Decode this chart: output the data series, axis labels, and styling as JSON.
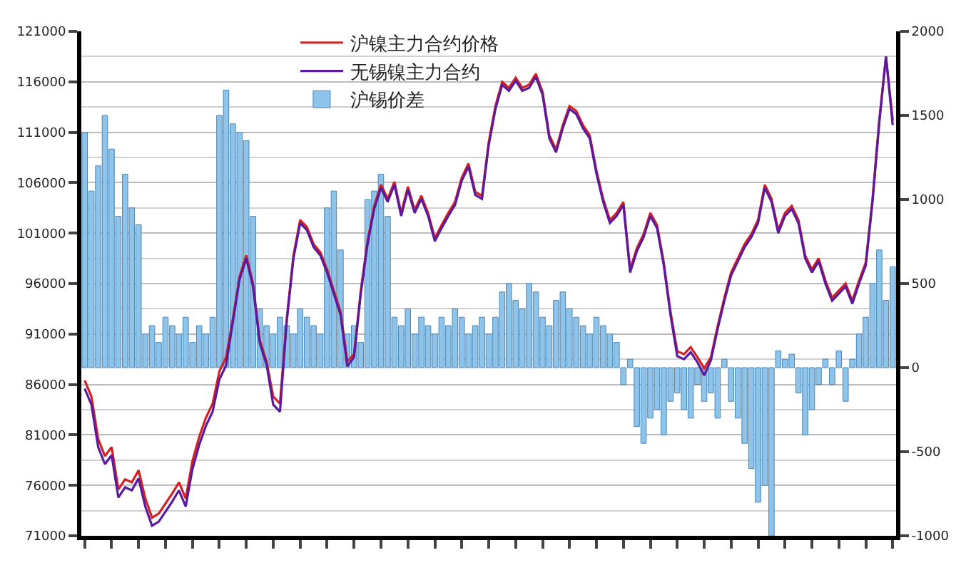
{
  "chart_data": {
    "type": "bar",
    "categories": [
      null,
      null,
      null,
      null,
      null,
      null,
      null,
      null,
      null,
      null,
      null,
      null,
      null,
      null,
      null,
      null,
      null,
      null,
      null,
      null,
      null,
      null,
      null,
      null,
      null,
      null,
      null,
      null,
      null,
      null,
      null,
      null,
      null,
      null,
      null,
      null,
      null,
      null,
      null,
      null,
      null,
      null,
      null,
      null,
      null,
      null,
      null,
      null,
      null,
      null,
      null,
      null,
      null,
      null,
      null,
      null,
      null,
      null,
      null,
      null,
      null,
      null,
      null,
      null,
      null,
      null,
      null,
      null,
      null,
      null,
      null,
      null,
      null,
      null,
      null,
      null,
      null,
      null,
      null,
      null,
      null,
      null,
      null,
      null,
      null,
      null,
      null,
      null,
      null,
      null,
      null,
      null,
      null,
      null,
      null,
      null,
      null,
      null,
      null,
      null,
      null,
      null,
      null,
      null,
      null,
      null,
      null,
      null,
      null,
      null,
      null,
      null,
      null,
      null,
      null,
      null,
      null,
      null,
      null,
      null,
      null
    ],
    "series": [
      {
        "name": "沪锡价差",
        "axis": "y2",
        "color": "#8ec3ea",
        "values": [
          1400,
          1050,
          1200,
          1500,
          1300,
          900,
          1150,
          950,
          850,
          200,
          250,
          150,
          300,
          250,
          200,
          300,
          150,
          250,
          200,
          300,
          1500,
          1650,
          1450,
          1400,
          1350,
          900,
          350,
          250,
          200,
          300,
          250,
          200,
          350,
          300,
          250,
          200,
          950,
          1050,
          700,
          200,
          250,
          150,
          1000,
          1050,
          1150,
          900,
          300,
          250,
          350,
          200,
          300,
          250,
          200,
          300,
          250,
          350,
          300,
          200,
          250,
          300,
          200,
          300,
          450,
          500,
          400,
          350,
          500,
          450,
          300,
          250,
          400,
          450,
          350,
          300,
          250,
          200,
          300,
          250,
          200,
          150,
          -100,
          50,
          -350,
          -450,
          -300,
          -250,
          -400,
          -200,
          -150,
          -250,
          -300,
          -100,
          -200,
          -150,
          -300,
          50,
          -200,
          -300,
          -450,
          -600,
          -800,
          -700,
          -1000,
          100,
          50,
          80,
          -150,
          -400,
          -250,
          -100,
          50,
          -100,
          100,
          -200,
          50,
          200,
          300,
          500,
          700,
          400,
          600
        ]
      },
      {
        "name": "沪镍主力合约价格",
        "type": "line",
        "axis": "y",
        "color": "#d42020",
        "values": [
          86400,
          84800,
          80600,
          78900,
          79800,
          75600,
          76600,
          76300,
          77500,
          74700,
          72800,
          73200,
          74200,
          75200,
          76300,
          74700,
          78400,
          80800,
          82700,
          84100,
          87300,
          88700,
          92500,
          96700,
          98800,
          96000,
          90400,
          88300,
          84800,
          84100,
          92500,
          98800,
          102300,
          101600,
          99900,
          99100,
          97400,
          95300,
          93200,
          88300,
          89000,
          95300,
          100200,
          103700,
          105800,
          104400,
          106100,
          103000,
          105600,
          103300,
          104700,
          103000,
          100500,
          101800,
          103000,
          104100,
          106500,
          107900,
          105100,
          104700,
          110000,
          113600,
          116000,
          115400,
          116400,
          115400,
          115700,
          116800,
          115000,
          110700,
          109300,
          111700,
          113600,
          113100,
          111700,
          110700,
          107200,
          104400,
          102300,
          103000,
          104100,
          97400,
          99500,
          100900,
          103000,
          101800,
          98100,
          93200,
          89300,
          89000,
          89700,
          88700,
          87600,
          88700,
          91800,
          94600,
          97100,
          98500,
          99900,
          100900,
          102300,
          105800,
          104400,
          101300,
          103000,
          103700,
          102300,
          98800,
          97400,
          98500,
          96300,
          94600,
          95300,
          96000,
          94300,
          96300,
          98100,
          104400,
          112200,
          118500,
          112200
        ]
      },
      {
        "name": "无锡镍主力合约",
        "type": "line",
        "axis": "y",
        "color": "#5a1aa0",
        "values": [
          85600,
          84000,
          79800,
          78100,
          79000,
          74800,
          75800,
          75500,
          76700,
          73900,
          72000,
          72400,
          73400,
          74400,
          75500,
          73900,
          77600,
          80000,
          81900,
          83300,
          86500,
          87900,
          92200,
          96400,
          98500,
          95700,
          90100,
          88000,
          84000,
          83300,
          92200,
          98500,
          102000,
          101300,
          99600,
          98800,
          97100,
          95000,
          92900,
          87800,
          88700,
          95000,
          99900,
          103400,
          105500,
          104100,
          105800,
          102700,
          105300,
          103000,
          104400,
          102700,
          100200,
          101500,
          102700,
          103800,
          106200,
          107600,
          104800,
          104400,
          109700,
          113300,
          115700,
          115100,
          116100,
          115100,
          115400,
          116500,
          114700,
          110400,
          109000,
          111400,
          113300,
          112800,
          111400,
          110400,
          106900,
          104100,
          102000,
          102700,
          103800,
          97100,
          99200,
          100600,
          102700,
          101500,
          97800,
          92900,
          88800,
          88500,
          89200,
          88200,
          86900,
          88400,
          91500,
          94300,
          96800,
          98200,
          99600,
          100600,
          102000,
          105500,
          104100,
          101000,
          102700,
          103400,
          102000,
          98500,
          97100,
          98200,
          96000,
          94300,
          95000,
          95700,
          94000,
          96000,
          97800,
          104100,
          111900,
          118500,
          111700
        ]
      }
    ],
    "ylim": [
      71000,
      121000
    ],
    "yticks": [
      71000,
      76000,
      81000,
      86000,
      91000,
      96000,
      101000,
      106000,
      111000,
      116000,
      121000
    ],
    "y2lim": [
      -1000,
      2000
    ],
    "y2ticks": [
      -1000,
      -500,
      0,
      500,
      1000,
      1500,
      2000
    ],
    "grid": "y",
    "legend": "top",
    "tick_labels": "y",
    "line_style": "solid",
    "marker": "none"
  }
}
